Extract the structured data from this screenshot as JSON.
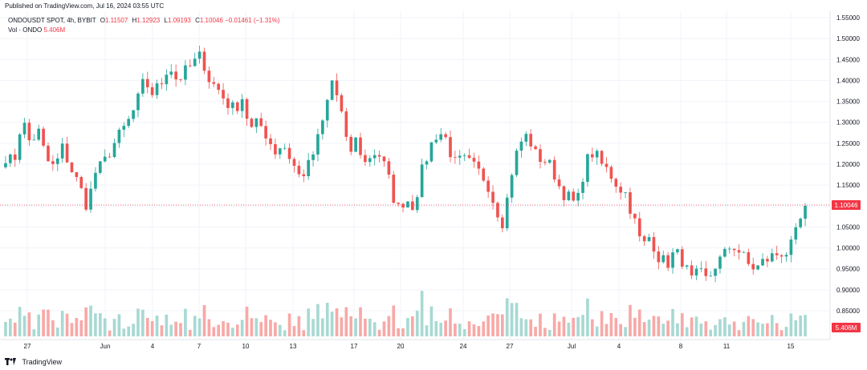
{
  "header": {
    "published": "Published on TradingView.com, Jul 16, 2024 03:55 UTC"
  },
  "legend": {
    "symbol": "ONDOUSDT SPOT, 4h, BYBIT",
    "o_label": "O",
    "o": "1.11507",
    "h_label": "H",
    "h": "1.12923",
    "l_label": "L",
    "l": "1.09193",
    "c_label": "C",
    "c": "1.10046",
    "change": "−0.01461 (−1.31%)",
    "vol_label": "Vol · ONDO",
    "vol_value": "5.406M"
  },
  "footer": {
    "brand": "TradingView"
  },
  "colors": {
    "up": "#26a69a",
    "down": "#ef5350",
    "up_vol": "#a8d9d3",
    "down_vol": "#f7a9a7",
    "price_line": "#f23645",
    "grid": "#f0f3fa"
  },
  "chart_data": {
    "type": "candlestick",
    "symbol": "ONDOUSDT",
    "exchange": "BYBIT",
    "interval": "4h",
    "y_axis_labels": [
      "1.55000",
      "1.50000",
      "1.45000",
      "1.40000",
      "1.35000",
      "1.30000",
      "1.25000",
      "1.20000",
      "1.15000",
      "1.10000",
      "1.05000",
      "1.00000",
      "0.95000",
      "0.90000",
      "0.85000"
    ],
    "ylim": [
      0.8,
      1.56
    ],
    "x_axis_labels": [
      "27",
      "Jun",
      "4",
      "7",
      "10",
      "13",
      "17",
      "20",
      "24",
      "27",
      "Jul",
      "4",
      "8",
      "11",
      "15"
    ],
    "last_price": "1.10046",
    "last_volume": "5.406M",
    "grid": true,
    "closes": [
      1.22,
      1.2,
      1.31,
      1.25,
      1.28,
      1.21,
      1.19,
      1.24,
      1.19,
      1.15,
      1.1,
      1.18,
      1.2,
      1.24,
      1.27,
      1.3,
      1.34,
      1.4,
      1.37,
      1.39,
      1.44,
      1.4,
      1.42,
      1.44,
      1.46,
      1.4,
      1.38,
      1.35,
      1.33,
      1.36,
      1.28,
      1.3,
      1.27,
      1.23,
      1.25,
      1.21,
      1.17,
      1.19,
      1.24,
      1.31,
      1.4,
      1.34,
      1.22,
      1.26,
      1.2,
      1.23,
      1.22,
      1.16,
      1.09,
      1.12,
      1.1,
      1.18,
      1.24,
      1.28,
      1.26,
      1.2,
      1.21,
      1.2,
      1.18,
      1.16,
      1.1,
      1.06,
      1.18,
      1.25,
      1.27,
      1.22,
      1.21,
      1.19,
      1.14,
      1.12,
      1.1,
      1.2,
      1.23,
      1.2,
      1.18,
      1.15,
      1.13,
      1.07,
      1.0,
      1.03,
      0.98,
      0.96,
      0.99,
      0.97,
      0.92,
      0.94,
      0.92,
      0.96,
      0.98,
      1.01,
      0.99,
      0.96,
      0.95,
      0.97,
      0.98,
      0.99,
      0.99,
      1.04,
      1.1
    ]
  }
}
